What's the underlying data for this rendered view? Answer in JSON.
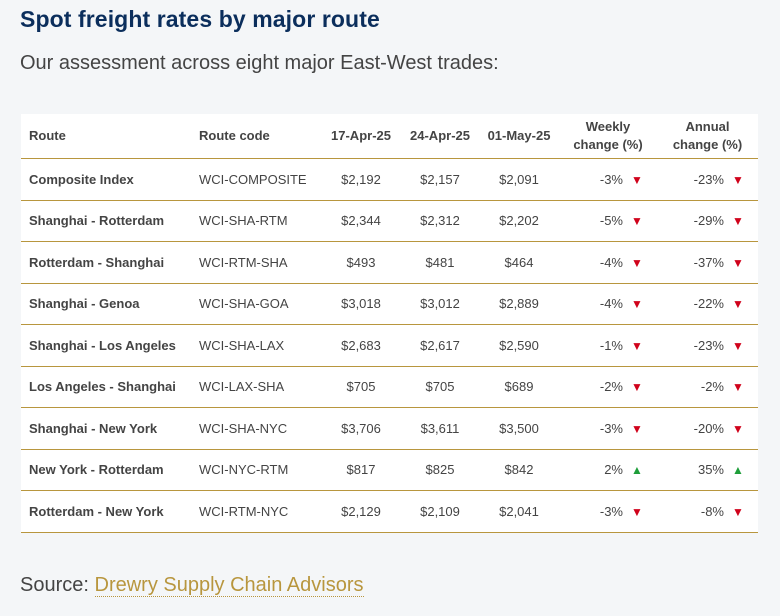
{
  "title": "Spot freight rates by major route",
  "subtitle": "Our assessment across eight major East-West trades:",
  "table": {
    "headers": {
      "route": "Route",
      "code": "Route code",
      "d1": "17-Apr-25",
      "d2": "24-Apr-25",
      "d3": "01-May-25",
      "weekly_l1": "Weekly",
      "weekly_l2": "change (%)",
      "annual_l1": "Annual",
      "annual_l2": "change (%)"
    },
    "rows": [
      {
        "route": "Composite Index",
        "code": "WCI-COMPOSITE",
        "d1": "$2,192",
        "d2": "$2,157",
        "d3": "$2,091",
        "weekly": "-3%",
        "weekly_dir": "down",
        "annual": "-23%",
        "annual_dir": "down"
      },
      {
        "route": "Shanghai - Rotterdam",
        "code": "WCI-SHA-RTM",
        "d1": "$2,344",
        "d2": "$2,312",
        "d3": "$2,202",
        "weekly": "-5%",
        "weekly_dir": "down",
        "annual": "-29%",
        "annual_dir": "down"
      },
      {
        "route": "Rotterdam - Shanghai",
        "code": "WCI-RTM-SHA",
        "d1": "$493",
        "d2": "$481",
        "d3": "$464",
        "weekly": "-4%",
        "weekly_dir": "down",
        "annual": "-37%",
        "annual_dir": "down"
      },
      {
        "route": "Shanghai - Genoa",
        "code": "WCI-SHA-GOA",
        "d1": "$3,018",
        "d2": "$3,012",
        "d3": "$2,889",
        "weekly": "-4%",
        "weekly_dir": "down",
        "annual": "-22%",
        "annual_dir": "down"
      },
      {
        "route": "Shanghai - Los Angeles",
        "code": "WCI-SHA-LAX",
        "d1": "$2,683",
        "d2": "$2,617",
        "d3": "$2,590",
        "weekly": "-1%",
        "weekly_dir": "down",
        "annual": "-23%",
        "annual_dir": "down"
      },
      {
        "route": "Los Angeles - Shanghai",
        "code": "WCI-LAX-SHA",
        "d1": "$705",
        "d2": "$705",
        "d3": "$689",
        "weekly": "-2%",
        "weekly_dir": "down",
        "annual": "-2%",
        "annual_dir": "down"
      },
      {
        "route": "Shanghai - New York",
        "code": "WCI-SHA-NYC",
        "d1": "$3,706",
        "d2": "$3,611",
        "d3": "$3,500",
        "weekly": "-3%",
        "weekly_dir": "down",
        "annual": "-20%",
        "annual_dir": "down"
      },
      {
        "route": "New York - Rotterdam",
        "code": "WCI-NYC-RTM",
        "d1": "$817",
        "d2": "$825",
        "d3": "$842",
        "weekly": "2%",
        "weekly_dir": "up",
        "annual": "35%",
        "annual_dir": "up"
      },
      {
        "route": "Rotterdam - New York",
        "code": "WCI-RTM-NYC",
        "d1": "$2,129",
        "d2": "$2,109",
        "d3": "$2,041",
        "weekly": "-3%",
        "weekly_dir": "down",
        "annual": "-8%",
        "annual_dir": "down"
      }
    ]
  },
  "source": {
    "label": "Source:",
    "link_text": "Drewry Supply Chain Advisors"
  },
  "colors": {
    "title": "#0b2e5c",
    "rule": "#b8963e",
    "down": "#d0021b",
    "up": "#1e9e3a"
  }
}
